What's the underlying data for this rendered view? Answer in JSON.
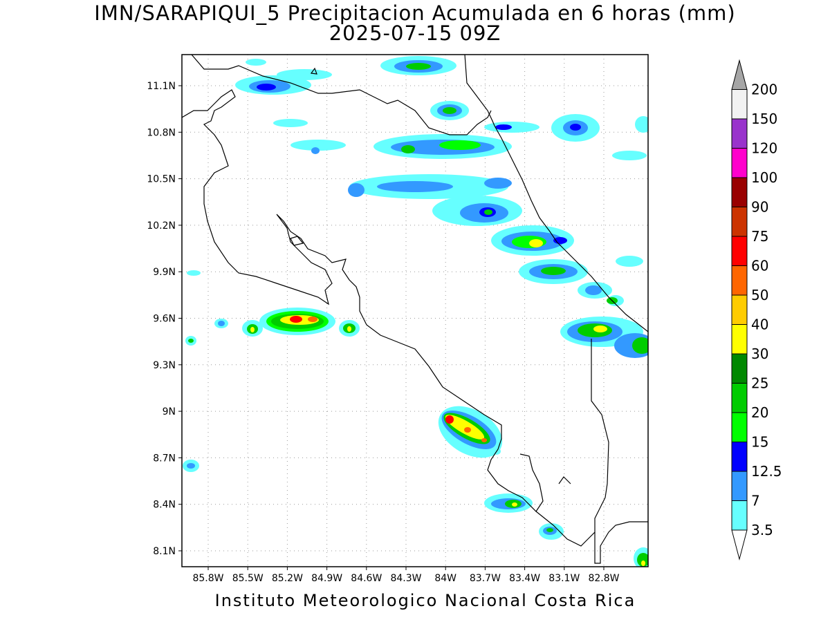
{
  "title_line1": "IMN/SARAPIQUI_5 Precipitacion Acumulada en 6 horas (mm)",
  "title_line2": "2025-07-15 09Z",
  "footer": "Instituto Meteorologico Nacional Costa Rica",
  "lat_ticks": [
    "11.1N",
    "10.8N",
    "10.5N",
    "10.2N",
    "9.9N",
    "9.6N",
    "9.3N",
    "9N",
    "8.7N",
    "8.4N",
    "8.1N"
  ],
  "lon_ticks": [
    "85.8W",
    "85.5W",
    "85.2W",
    "84.9W",
    "84.6W",
    "84.3W",
    "84W",
    "83.7W",
    "83.4W",
    "83.1W",
    "82.8W"
  ],
  "colorbar": {
    "levels": [
      "3.5",
      "7",
      "12.5",
      "15",
      "20",
      "25",
      "30",
      "40",
      "50",
      "60",
      "75",
      "90",
      "100",
      "120",
      "150",
      "200"
    ],
    "colors": [
      "#66ffff",
      "#3399ff",
      "#0000ff",
      "#00ff00",
      "#00cc00",
      "#008800",
      "#ffff00",
      "#ffcc00",
      "#ff6600",
      "#ff0000",
      "#cc3300",
      "#990000",
      "#ff00cc",
      "#9933cc",
      "#f2f2f2",
      "#a6a6a6"
    ]
  }
}
